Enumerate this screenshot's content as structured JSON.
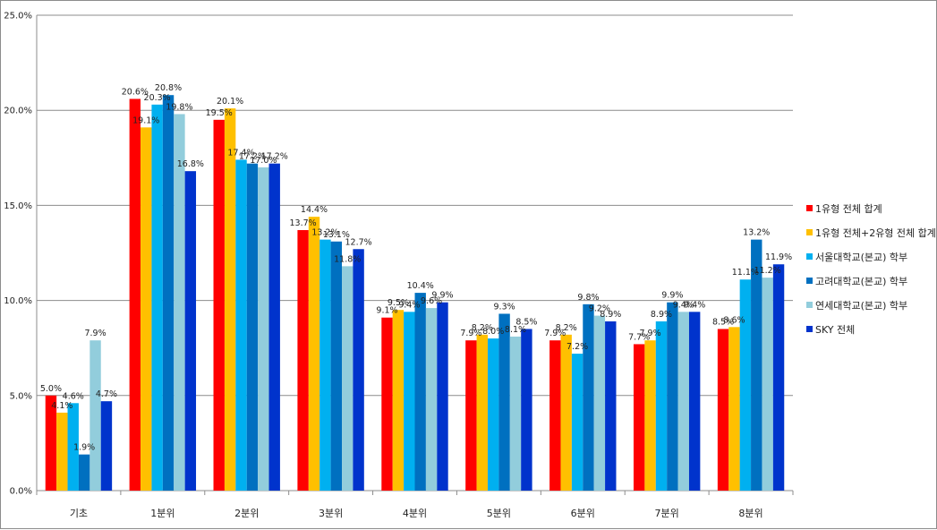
{
  "chart_data": {
    "type": "bar",
    "categories": [
      "기초",
      "1분위",
      "2분위",
      "3분위",
      "4분위",
      "5분위",
      "6분위",
      "7분위",
      "8분위"
    ],
    "ylim": [
      0,
      25
    ],
    "yticks": [
      "0.0%",
      "5.0%",
      "10.0%",
      "15.0%",
      "20.0%",
      "25.0%"
    ],
    "grid": "horizontal",
    "legend_position": "right",
    "series": [
      {
        "name": "1유형 전체 합계",
        "color": "#ff0000",
        "values": [
          5.0,
          20.6,
          19.5,
          13.7,
          9.1,
          7.9,
          7.9,
          7.7,
          8.5
        ],
        "labels": [
          "5.0%",
          "20.6%",
          "19.5%",
          "13.7%",
          "9.1%",
          "7.9%",
          "7.9%",
          "7.7%",
          "8.5%"
        ]
      },
      {
        "name": "1유형 전체+2유형 전체 합계",
        "color": "#ffc000",
        "values": [
          4.1,
          19.1,
          20.1,
          14.4,
          9.5,
          8.2,
          8.2,
          7.9,
          8.6
        ],
        "labels": [
          "4.1%",
          "19.1%",
          "20.1%",
          "14.4%",
          "9.5%",
          "8.2%",
          "8.2%",
          "7.9%",
          "8.6%"
        ]
      },
      {
        "name": "서울대학교(본교) 학부",
        "color": "#00b0f0",
        "values": [
          4.6,
          20.3,
          17.4,
          13.2,
          9.4,
          8.0,
          7.2,
          8.9,
          11.1
        ],
        "labels": [
          "4.6%",
          "20.3%",
          "17.4%",
          "13.2%",
          "9.4%",
          "8.0%",
          "7.2%",
          "8.9%",
          "11.1%"
        ]
      },
      {
        "name": "고려대학교(본교) 학부",
        "color": "#0070c0",
        "values": [
          1.9,
          20.8,
          17.2,
          13.1,
          10.4,
          9.3,
          9.8,
          9.9,
          13.2
        ],
        "labels": [
          "1.9%",
          "20.8%",
          "17.2%",
          "13.1%",
          "10.4%",
          "9.3%",
          "9.8%",
          "9.9%",
          "13.2%"
        ]
      },
      {
        "name": "연세대학교(본교) 학부",
        "color": "#92cddc",
        "values": [
          7.9,
          19.8,
          17.0,
          11.8,
          9.6,
          8.1,
          9.2,
          9.4,
          11.2
        ],
        "labels": [
          "7.9%",
          "19.8%",
          "17.0%",
          "11.8%",
          "9.6%",
          "8.1%",
          "9.2%",
          "9.4%",
          "11.2%"
        ]
      },
      {
        "name": "SKY 전체",
        "color": "#0033cc",
        "values": [
          4.7,
          16.8,
          17.2,
          12.7,
          9.9,
          8.5,
          8.9,
          9.4,
          11.9
        ],
        "labels": [
          "4.7%",
          "16.8%",
          "17.2%",
          "12.7%",
          "9.9%",
          "8.5%",
          "8.9%",
          "9.4%",
          "11.9%"
        ]
      }
    ]
  }
}
